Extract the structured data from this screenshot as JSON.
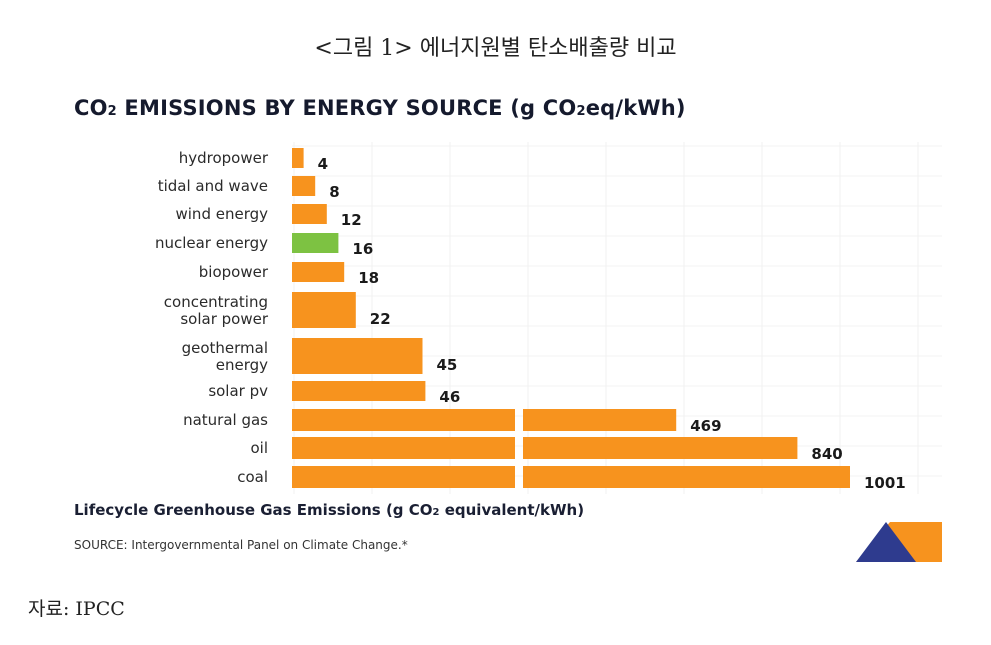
{
  "caption": "<그림 1> 에너지원별 탄소배출량 비교",
  "chart_data": {
    "type": "bar",
    "orientation": "horizontal",
    "title": {
      "part1": "CO",
      "sub1": "2",
      "part2": " EMISSIONS BY ENERGY SOURCE  (g CO",
      "sub2": "2",
      "part3": "eq/kWh)"
    },
    "categories": [
      "hydropower",
      "tidal and wave",
      "wind energy",
      "nuclear energy",
      "biopower",
      "concentrating solar power",
      "geothermal energy",
      "solar pv",
      "natural gas",
      "oil",
      "coal"
    ],
    "category_lines": [
      [
        "hydropower"
      ],
      [
        "tidal and wave"
      ],
      [
        "wind energy"
      ],
      [
        "nuclear energy"
      ],
      [
        "biopower"
      ],
      [
        "concentrating",
        "solar power"
      ],
      [
        "geothermal",
        "energy"
      ],
      [
        "solar pv"
      ],
      [
        "natural gas"
      ],
      [
        "oil"
      ],
      [
        "coal"
      ]
    ],
    "values": [
      4,
      8,
      12,
      16,
      18,
      22,
      45,
      46,
      469,
      840,
      1001
    ],
    "value_labels": [
      "4",
      "8",
      "12",
      "16",
      "18",
      "22",
      "45",
      "46",
      "469",
      "840",
      "1001"
    ],
    "colors": [
      "#f7931e",
      "#f7931e",
      "#f7931e",
      "#7dc242",
      "#f7931e",
      "#f7931e",
      "#f7931e",
      "#f7931e",
      "#f7931e",
      "#f7931e",
      "#f7931e"
    ],
    "axis_break": true,
    "xlabel": {
      "part1": "Lifecycle Greenhouse Gas Emissions (g CO",
      "sub": "2",
      "part2": " equivalent/kWh)"
    },
    "source": "SOURCE: Intergovernmental Panel on Climate Change.*",
    "grid": true
  },
  "logo_colors": {
    "dark": "#2e3b8e",
    "light": "#f7931e"
  },
  "attribution": "자료: IPCC"
}
